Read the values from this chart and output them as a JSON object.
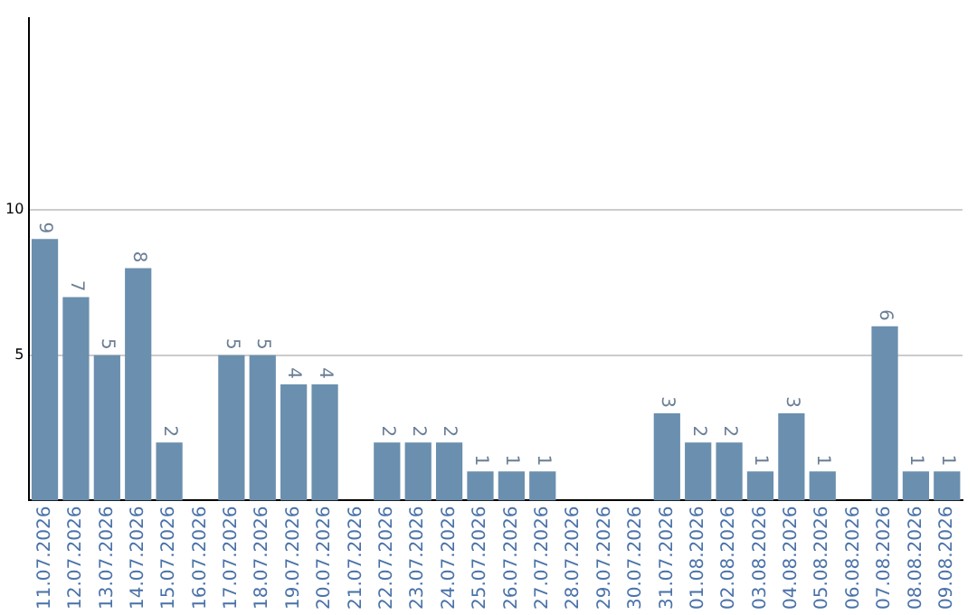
{
  "chart_data": {
    "type": "bar",
    "categories": [
      "11.07.2026",
      "12.07.2026",
      "13.07.2026",
      "14.07.2026",
      "15.07.2026",
      "16.07.2026",
      "17.07.2026",
      "18.07.2026",
      "19.07.2026",
      "20.07.2026",
      "21.07.2026",
      "22.07.2026",
      "23.07.2026",
      "24.07.2026",
      "25.07.2026",
      "26.07.2026",
      "27.07.2026",
      "28.07.2026",
      "29.07.2026",
      "30.07.2026",
      "31.07.2026",
      "01.08.2026",
      "02.08.2026",
      "03.08.2026",
      "04.08.2026",
      "05.08.2026",
      "06.08.2026",
      "07.08.2026",
      "08.08.2026",
      "09.08.2026"
    ],
    "values": [
      9,
      7,
      5,
      8,
      2,
      0,
      5,
      5,
      4,
      4,
      0,
      2,
      2,
      2,
      1,
      1,
      1,
      0,
      0,
      0,
      3,
      2,
      2,
      1,
      3,
      1,
      0,
      6,
      1,
      1
    ],
    "value_labels": [
      "9",
      "7",
      "5",
      "8",
      "2",
      null,
      "5",
      "5",
      "4",
      "4",
      null,
      "2",
      "2",
      "2",
      "1",
      "1",
      "1",
      null,
      null,
      null,
      "3",
      "2",
      "2",
      "1",
      "3",
      "1",
      null,
      "6",
      "1",
      "1"
    ],
    "color": "#6b8fae",
    "ylim": [
      0,
      16.6
    ],
    "yticks": [
      5,
      10
    ],
    "grid": "y",
    "legend": false
  }
}
